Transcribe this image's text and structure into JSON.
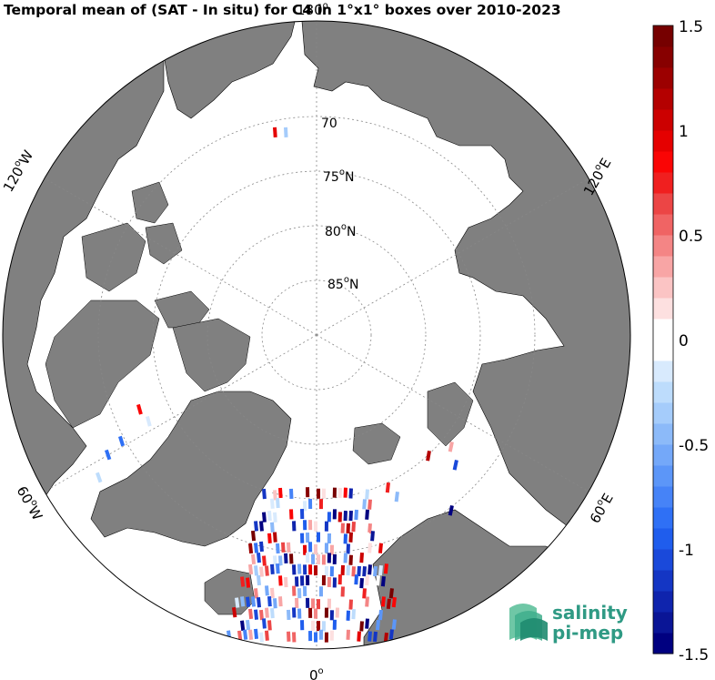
{
  "title": "Temporal mean of (SAT - In situ) for C4 in 1°x1° boxes over 2010-2023",
  "map": {
    "projection": "north-polar-stereographic",
    "ocean_color": "#ffffff",
    "land_color": "#808080",
    "latitude_labels": [
      {
        "text": "70",
        "sup": "o",
        "suffix": "N"
      },
      {
        "text": "75",
        "sup": "o",
        "suffix": "N"
      },
      {
        "text": "80",
        "sup": "o",
        "suffix": "N"
      },
      {
        "text": "85",
        "sup": "o",
        "suffix": "N"
      }
    ],
    "longitude_labels": [
      {
        "text": "180",
        "sup": "o"
      },
      {
        "text": "120",
        "sup": "o",
        "suffix": "E"
      },
      {
        "text": "60",
        "sup": "o",
        "suffix": "E"
      },
      {
        "text": "0",
        "sup": "o"
      },
      {
        "text": "60",
        "sup": "o",
        "suffix": "W"
      },
      {
        "text": "120",
        "sup": "o",
        "suffix": "W"
      }
    ]
  },
  "colorbar": {
    "min": -1.5,
    "max": 1.5,
    "tick_labels": [
      "1.5",
      "1",
      "0.5",
      "0",
      "-0.5",
      "-1",
      "-1.5"
    ],
    "colors": [
      "#000080",
      "#0a1596",
      "#0f24ad",
      "#1436c4",
      "#1a49da",
      "#1f5ded",
      "#2f70f5",
      "#4683f7",
      "#5c96f8",
      "#74a8f9",
      "#8cbaf9",
      "#a5ccfb",
      "#bddcfc",
      "#d8eafd",
      "#ffffff",
      "#ffffff",
      "#fde0e0",
      "#fbc4c4",
      "#f8a5a5",
      "#f48585",
      "#f06464",
      "#ec4545",
      "#f01f1f",
      "#fa0505",
      "#e50000",
      "#cc0000",
      "#b40000",
      "#9c0000",
      "#870000",
      "#760000"
    ]
  },
  "logo": {
    "line1": "salinity",
    "line2": "pi-mep"
  }
}
